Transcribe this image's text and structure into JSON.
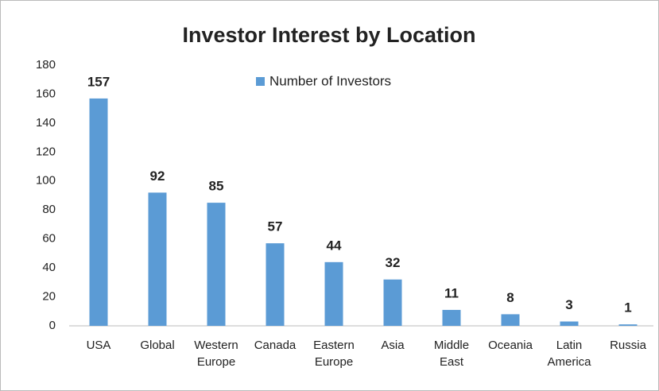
{
  "chart_data": {
    "type": "bar",
    "title": "Investor Interest by Location",
    "categories": [
      "USA",
      "Global",
      "Western Europe",
      "Canada",
      "Eastern Europe",
      "Asia",
      "Middle East",
      "Oceania",
      "Latin America",
      "Russia"
    ],
    "series": [
      {
        "name": "Number of Investors",
        "color": "#5b9bd5",
        "values": [
          157,
          92,
          85,
          57,
          44,
          32,
          11,
          8,
          3,
          1
        ]
      }
    ],
    "ylim": [
      0,
      180
    ],
    "yticks": [
      0,
      20,
      40,
      60,
      80,
      100,
      120,
      140,
      160,
      180
    ],
    "grid": false
  }
}
